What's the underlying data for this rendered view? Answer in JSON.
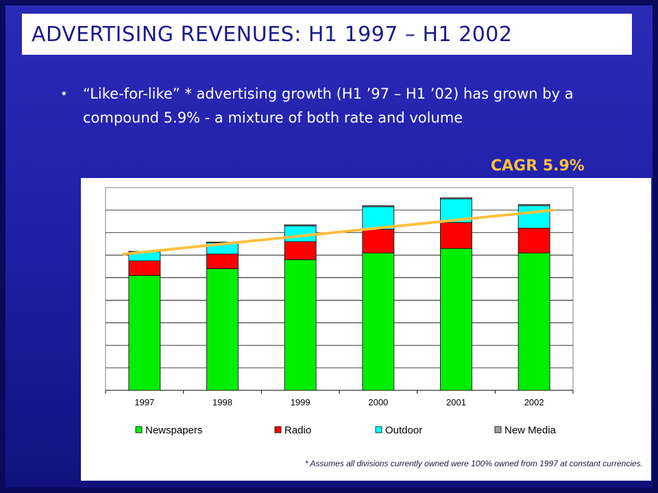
{
  "title": "ADVERTISING REVENUES: H1 1997 – H1 2002",
  "bullet": "“Like-for-like” * advertising growth (H1 ’97 – H1 ’02) has grown by a compound 5.9% - a mixture of both rate and volume",
  "cagr_label": "CAGR 5.9%",
  "footnote": "* Assumes all divisions currently owned were 100% owned from 1997 at constant currencies.",
  "colors": {
    "Newspapers": "#00ee00",
    "Radio": "#ff0000",
    "Outdoor": "#00ffff",
    "New Media": "#a0a0a0",
    "trend": "#ffc040"
  },
  "chart_data": {
    "type": "bar",
    "stacked": true,
    "categories": [
      "1997",
      "1998",
      "1999",
      "2000",
      "2001",
      "2002"
    ],
    "series": [
      {
        "name": "Newspapers",
        "values": [
          5.1,
          5.4,
          5.8,
          6.1,
          6.3,
          6.1
        ]
      },
      {
        "name": "Radio",
        "values": [
          0.65,
          0.65,
          0.8,
          1.05,
          1.15,
          1.1
        ]
      },
      {
        "name": "Outdoor",
        "values": [
          0.4,
          0.5,
          0.7,
          1.0,
          1.05,
          1.0
        ]
      },
      {
        "name": "New Media",
        "values": [
          0.02,
          0.03,
          0.05,
          0.05,
          0.05,
          0.05
        ]
      }
    ],
    "trend_line": {
      "from": {
        "x": "1997",
        "y": 6.05
      },
      "to": {
        "x": "2002",
        "y": 8.0
      }
    },
    "ylim": [
      0,
      9
    ],
    "grid": true,
    "legend_position": "bottom"
  }
}
